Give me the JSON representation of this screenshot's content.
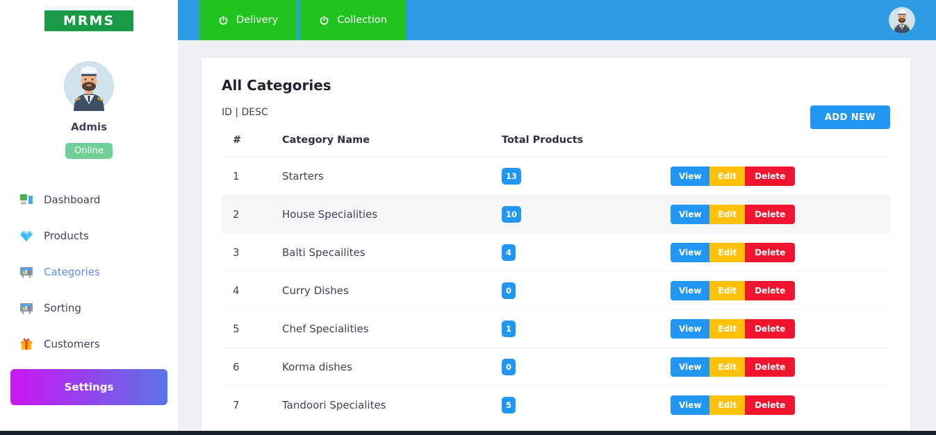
{
  "app": {
    "logo_text": "MRMS"
  },
  "topbar": {
    "buttons": [
      {
        "label": "Delivery",
        "icon": "power-icon"
      },
      {
        "label": "Collection",
        "icon": "power-icon"
      }
    ],
    "avatar": "captain-avatar"
  },
  "sidebar": {
    "user": {
      "name": "Admis",
      "status": "Online",
      "avatar": "captain-avatar"
    },
    "items": [
      {
        "label": "Dashboard",
        "icon": "dashboard-icon",
        "active": false
      },
      {
        "label": "Products",
        "icon": "gem-icon",
        "active": false
      },
      {
        "label": "Categories",
        "icon": "board-icon",
        "active": true
      },
      {
        "label": "Sorting",
        "icon": "board-icon",
        "active": false
      },
      {
        "label": "Customers",
        "icon": "gift-icon",
        "active": false
      }
    ],
    "settings_label": "Settings"
  },
  "main": {
    "title": "All Categories",
    "sort_label": "ID | DESC",
    "add_new_label": "ADD NEW",
    "table": {
      "headers": [
        "#",
        "Category Name",
        "Total Products"
      ],
      "actions": [
        "View",
        "Edit",
        "Delete"
      ],
      "rows": [
        {
          "id": "1",
          "name": "Starters",
          "total": "13",
          "highlight": false
        },
        {
          "id": "2",
          "name": "House Specialities",
          "total": "10",
          "highlight": true
        },
        {
          "id": "3",
          "name": "Balti Specailites",
          "total": "4",
          "highlight": false
        },
        {
          "id": "4",
          "name": "Curry Dishes",
          "total": "0",
          "highlight": false
        },
        {
          "id": "5",
          "name": "Chef Specialities",
          "total": "1",
          "highlight": false
        },
        {
          "id": "6",
          "name": "Korma dishes",
          "total": "0",
          "highlight": false
        },
        {
          "id": "7",
          "name": "Tandoori Specialites",
          "total": "5",
          "highlight": false
        }
      ]
    }
  },
  "colors": {
    "topbar_blue": "#2d9ce5",
    "action_green": "#1fc41f",
    "logo_green": "#189a46",
    "primary_blue": "#2196f3",
    "edit_yellow": "#ffc107",
    "delete_red": "#f0142f",
    "online_green": "#6fcf97",
    "active_nav_blue": "#5b8def",
    "settings_gradient_from": "#ca16f2",
    "settings_gradient_to": "#5b74e6",
    "footer_dark": "#18202e"
  }
}
